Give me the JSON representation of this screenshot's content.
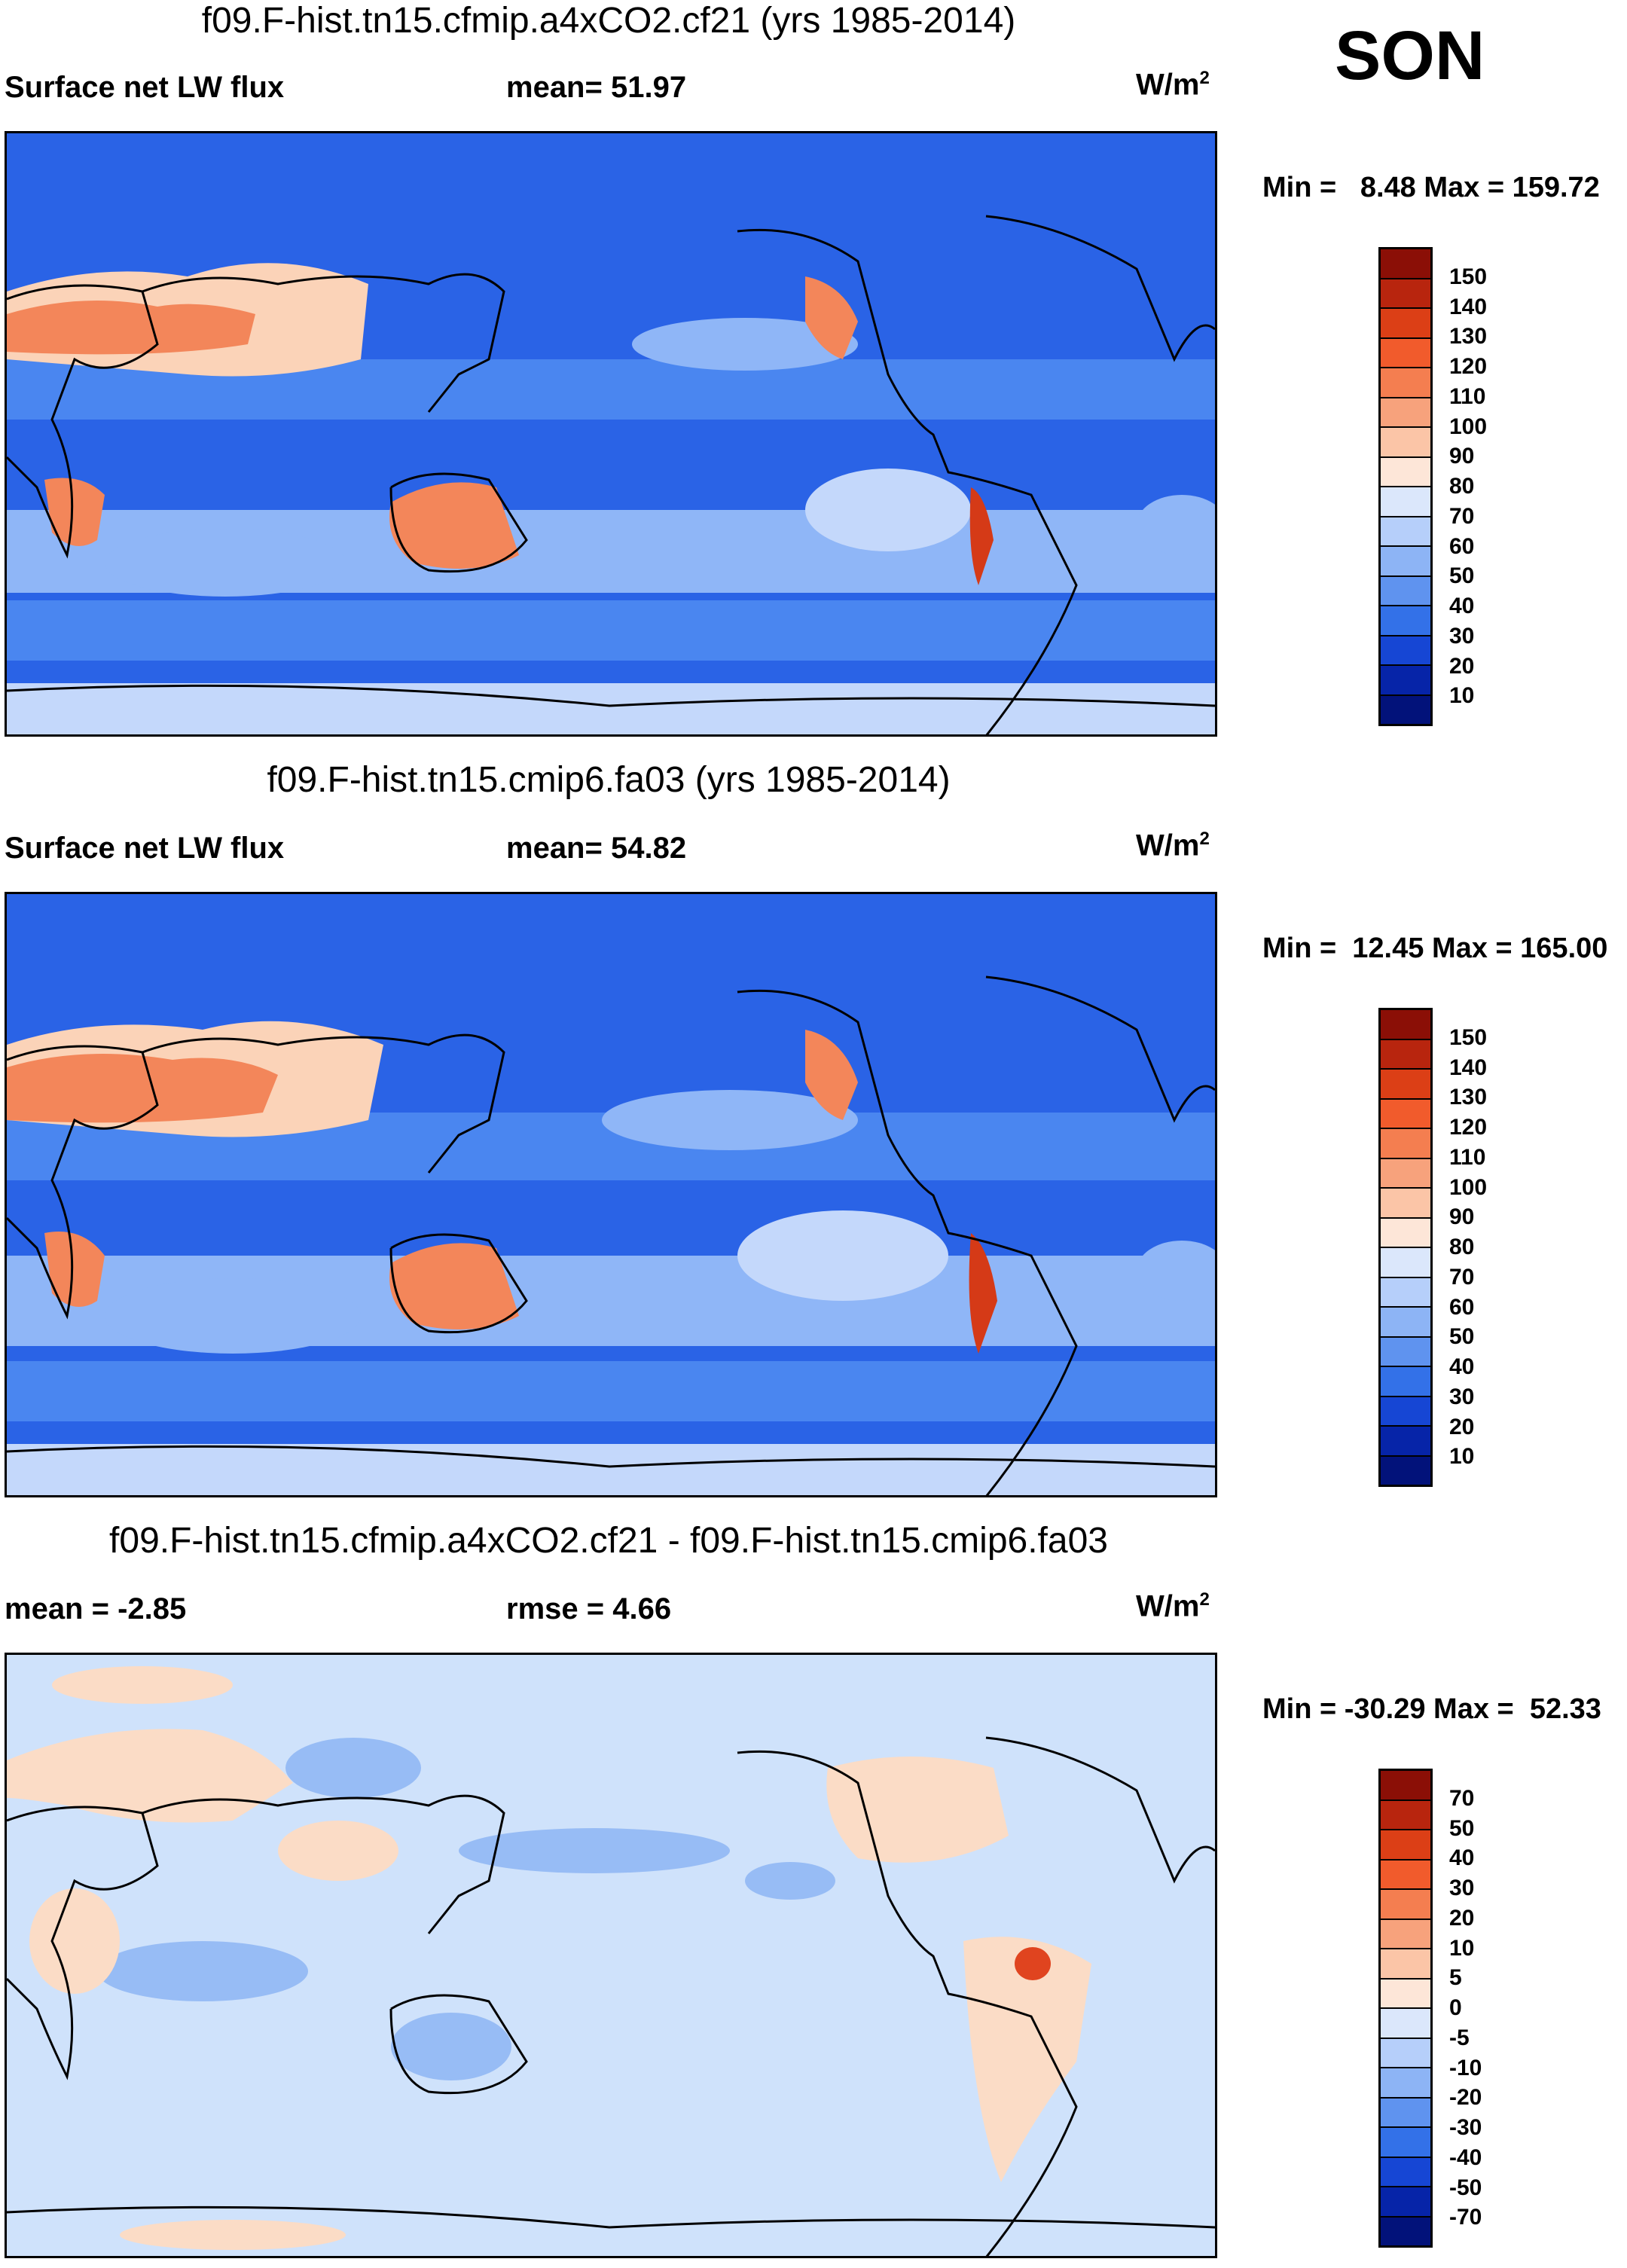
{
  "season": "SON",
  "colors": {
    "ocean_deep": "#2a63e6",
    "ocean_mid": "#4a86f0",
    "band_light": "#8fb6f7",
    "band_pale": "#c4d8fb",
    "warm_light": "#fbd3b8",
    "warm_mid": "#f3865a",
    "warm_deep": "#d53a17",
    "diff_base": "#cfe2fb",
    "diff_blue": "#97bcf5",
    "diff_warm": "#fbdcc6",
    "diff_hot": "#e0441f",
    "coast": "#000000"
  },
  "panels": [
    {
      "id": "top",
      "title": "f09.F-hist.tn15.cfmip.a4xCO2.cf21 (yrs 1985-2014)",
      "left_label": "Surface net LW flux",
      "mean_label": "mean=  51.97",
      "unit_base": "W/m",
      "unit_exp": "2",
      "minmax": "Min =   8.48 Max = 159.72",
      "colorbar": {
        "labels": [
          "150",
          "140",
          "130",
          "120",
          "110",
          "100",
          "90",
          "80",
          "70",
          "60",
          "50",
          "40",
          "30",
          "20",
          "10"
        ],
        "colors": [
          "#8b0f06",
          "#b8250e",
          "#dc3f16",
          "#f15b2c",
          "#f47e50",
          "#f7a27c",
          "#fbc5a7",
          "#fde6d8",
          "#dbe7fb",
          "#b6cffa",
          "#8db4f5",
          "#5f93ef",
          "#3371e8",
          "#1646d4",
          "#0624a8",
          "#02127a"
        ]
      }
    },
    {
      "id": "middle",
      "title": "f09.F-hist.tn15.cmip6.fa03 (yrs 1985-2014)",
      "left_label": "Surface net LW flux",
      "mean_label": "mean=  54.82",
      "unit_base": "W/m",
      "unit_exp": "2",
      "minmax": "Min =  12.45 Max = 165.00",
      "colorbar": {
        "labels": [
          "150",
          "140",
          "130",
          "120",
          "110",
          "100",
          "90",
          "80",
          "70",
          "60",
          "50",
          "40",
          "30",
          "20",
          "10"
        ],
        "colors": [
          "#8b0f06",
          "#b8250e",
          "#dc3f16",
          "#f15b2c",
          "#f47e50",
          "#f7a27c",
          "#fbc5a7",
          "#fde6d8",
          "#dbe7fb",
          "#b6cffa",
          "#8db4f5",
          "#5f93ef",
          "#3371e8",
          "#1646d4",
          "#0624a8",
          "#02127a"
        ]
      }
    },
    {
      "id": "bottom",
      "title": "f09.F-hist.tn15.cfmip.a4xCO2.cf21 - f09.F-hist.tn15.cmip6.fa03",
      "left_label": "mean =  -2.85",
      "mean_label": "rmse =    4.66",
      "unit_base": "W/m",
      "unit_exp": "2",
      "minmax": "Min = -30.29 Max =  52.33",
      "colorbar": {
        "labels": [
          "70",
          "50",
          "40",
          "30",
          "20",
          "10",
          "5",
          "0",
          "-5",
          "-10",
          "-20",
          "-30",
          "-40",
          "-50",
          "-70"
        ],
        "colors": [
          "#8b0f06",
          "#b8250e",
          "#dc3f16",
          "#f15b2c",
          "#f47e50",
          "#f7a27c",
          "#fbc5a7",
          "#fde6d8",
          "#dbe7fb",
          "#b6cffa",
          "#8db4f5",
          "#5f93ef",
          "#3371e8",
          "#1646d4",
          "#0624a8",
          "#02127a"
        ]
      }
    }
  ]
}
